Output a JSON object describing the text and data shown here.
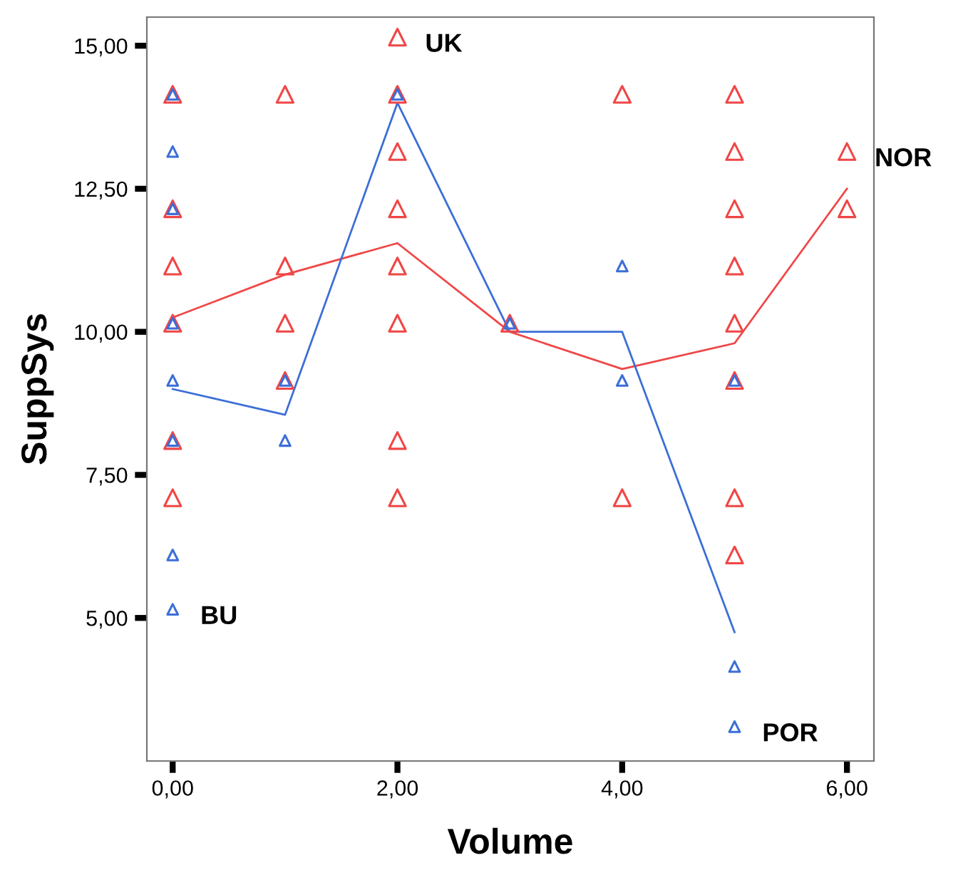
{
  "chart_data": {
    "type": "scatter",
    "xlabel": "Volume",
    "ylabel": "SuppSys",
    "xlim": [
      -0.23,
      6.24
    ],
    "ylim": [
      2.5,
      15.5
    ],
    "xticks": [
      {
        "value": 0,
        "label": "0,00"
      },
      {
        "value": 2,
        "label": "2,00"
      },
      {
        "value": 4,
        "label": "4,00"
      },
      {
        "value": 6,
        "label": "6,00"
      }
    ],
    "yticks": [
      {
        "value": 5,
        "label": "5,00"
      },
      {
        "value": 7.5,
        "label": "7,50"
      },
      {
        "value": 10,
        "label": "10,00"
      },
      {
        "value": 12.5,
        "label": "12,50"
      },
      {
        "value": 15,
        "label": "15,00"
      }
    ],
    "grid": false,
    "series": [
      {
        "marker": "triangle",
        "color": "#f04646",
        "x": [
          0,
          0,
          0,
          0,
          0,
          0,
          1,
          1,
          1,
          1,
          2,
          2,
          2,
          2,
          2,
          2,
          2,
          2,
          3,
          4,
          4,
          5,
          5,
          5,
          5,
          5,
          5,
          5,
          5,
          6,
          6
        ],
        "values": [
          14.15,
          12.15,
          11.15,
          10.15,
          8.1,
          7.1,
          14.15,
          11.15,
          10.15,
          9.15,
          15.15,
          14.15,
          13.15,
          12.15,
          11.15,
          10.15,
          8.1,
          7.1,
          10.15,
          14.15,
          7.1,
          14.15,
          13.15,
          12.15,
          11.15,
          10.15,
          9.15,
          7.1,
          6.1,
          13.15,
          12.15
        ]
      },
      {
        "marker": "triangle",
        "color": "#3c6ed7",
        "x": [
          0,
          0,
          0,
          0,
          0,
          0,
          0,
          0,
          1,
          1,
          2,
          3,
          4,
          4,
          5,
          5,
          5
        ],
        "values": [
          14.15,
          13.15,
          12.15,
          10.15,
          9.15,
          8.1,
          6.1,
          5.15,
          9.15,
          8.1,
          14.15,
          10.15,
          11.15,
          9.15,
          9.15,
          4.15,
          3.1
        ]
      },
      {
        "type": "line",
        "marker": "none",
        "color": "#f04646",
        "x": [
          0,
          1,
          2,
          3,
          4,
          5,
          6
        ],
        "values": [
          10.25,
          11.0,
          11.55,
          10.0,
          9.35,
          9.8,
          12.5
        ]
      },
      {
        "type": "line",
        "marker": "none",
        "color": "#3c6ed7",
        "x": [
          0,
          1,
          2,
          3,
          4,
          5
        ],
        "values": [
          9.0,
          8.55,
          14.0,
          10.0,
          10.0,
          4.75
        ]
      }
    ],
    "annotations": [
      {
        "text": "UK",
        "x": 2,
        "y": 15.15
      },
      {
        "text": "BU",
        "x": 0,
        "y": 5.15
      },
      {
        "text": "NOR",
        "x": 6,
        "y": 13.15
      },
      {
        "text": "POR",
        "x": 5,
        "y": 3.1
      }
    ]
  }
}
